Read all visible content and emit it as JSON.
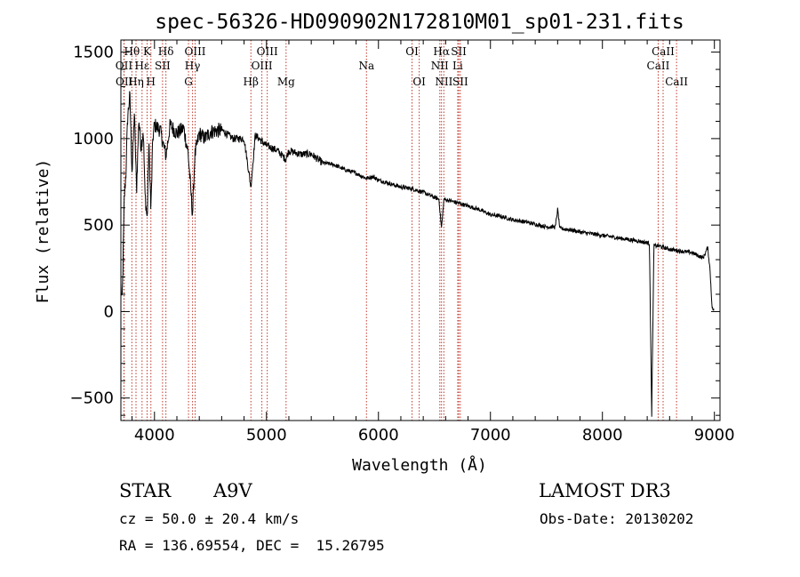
{
  "chart_data": {
    "type": "line",
    "title": "spec-56326-HD090902N172810M01_sp01-231.fits",
    "xlabel": "Wavelength (Å)",
    "ylabel": "Flux (relative)",
    "xlim": [
      3700,
      9050
    ],
    "ylim": [
      -630,
      1570
    ],
    "xticks": [
      4000,
      5000,
      6000,
      7000,
      8000,
      9000
    ],
    "yticks": [
      -500,
      0,
      500,
      1000,
      1500
    ],
    "spectrum_anchors": [
      [
        3700,
        150
      ],
      [
        3710,
        40
      ],
      [
        3720,
        300
      ],
      [
        3730,
        650
      ],
      [
        3745,
        800
      ],
      [
        3760,
        1120
      ],
      [
        3780,
        1250
      ],
      [
        3800,
        800
      ],
      [
        3820,
        1150
      ],
      [
        3840,
        700
      ],
      [
        3860,
        1120
      ],
      [
        3880,
        950
      ],
      [
        3900,
        1050
      ],
      [
        3915,
        680
      ],
      [
        3935,
        530
      ],
      [
        3950,
        980
      ],
      [
        3968,
        580
      ],
      [
        3985,
        1000
      ],
      [
        4000,
        1080
      ],
      [
        4050,
        1050
      ],
      [
        4102,
        900
      ],
      [
        4140,
        1080
      ],
      [
        4200,
        1030
      ],
      [
        4260,
        1060
      ],
      [
        4300,
        920
      ],
      [
        4340,
        560
      ],
      [
        4360,
        900
      ],
      [
        4400,
        1030
      ],
      [
        4450,
        1000
      ],
      [
        4500,
        1040
      ],
      [
        4600,
        1050
      ],
      [
        4700,
        1000
      ],
      [
        4800,
        1000
      ],
      [
        4861,
        720
      ],
      [
        4900,
        1020
      ],
      [
        5000,
        960
      ],
      [
        5100,
        930
      ],
      [
        5172,
        880
      ],
      [
        5200,
        930
      ],
      [
        5300,
        910
      ],
      [
        5400,
        910
      ],
      [
        5500,
        860
      ],
      [
        5600,
        850
      ],
      [
        5700,
        820
      ],
      [
        5800,
        800
      ],
      [
        5890,
        770
      ],
      [
        5950,
        780
      ],
      [
        6000,
        760
      ],
      [
        6100,
        740
      ],
      [
        6200,
        720
      ],
      [
        6300,
        710
      ],
      [
        6400,
        690
      ],
      [
        6500,
        660
      ],
      [
        6540,
        650
      ],
      [
        6563,
        480
      ],
      [
        6585,
        650
      ],
      [
        6700,
        630
      ],
      [
        6800,
        610
      ],
      [
        6900,
        590
      ],
      [
        7000,
        560
      ],
      [
        7100,
        550
      ],
      [
        7200,
        530
      ],
      [
        7300,
        520
      ],
      [
        7400,
        505
      ],
      [
        7500,
        490
      ],
      [
        7580,
        490
      ],
      [
        7600,
        590
      ],
      [
        7620,
        480
      ],
      [
        7700,
        475
      ],
      [
        7800,
        460
      ],
      [
        7900,
        450
      ],
      [
        8000,
        440
      ],
      [
        8100,
        430
      ],
      [
        8200,
        420
      ],
      [
        8300,
        410
      ],
      [
        8420,
        395
      ],
      [
        8440,
        -600
      ],
      [
        8460,
        380
      ],
      [
        8500,
        380
      ],
      [
        8600,
        360
      ],
      [
        8700,
        350
      ],
      [
        8800,
        340
      ],
      [
        8900,
        310
      ],
      [
        8940,
        370
      ],
      [
        8960,
        250
      ],
      [
        8980,
        20
      ],
      [
        9000,
        5
      ]
    ],
    "emission_lines": [
      {
        "label": "Hθ",
        "wavelength": 3798,
        "row": 1
      },
      {
        "label": "OII",
        "wavelength": 3727,
        "row": 2
      },
      {
        "label": "OII",
        "wavelength": 3729,
        "row": 3
      },
      {
        "label": "K",
        "wavelength": 3934,
        "row": 1
      },
      {
        "label": "Hε",
        "wavelength": 3889,
        "row": 2
      },
      {
        "label": "Hη",
        "wavelength": 3835,
        "row": 3
      },
      {
        "label": "SII",
        "wavelength": 4072,
        "row": 2
      },
      {
        "label": "H",
        "wavelength": 3968,
        "row": 3
      },
      {
        "label": "Hδ",
        "wavelength": 4102,
        "row": 1
      },
      {
        "label": "OIII",
        "wavelength": 4363,
        "row": 1
      },
      {
        "label": "Hγ",
        "wavelength": 4340,
        "row": 2
      },
      {
        "label": "G",
        "wavelength": 4304,
        "row": 3
      },
      {
        "label": "OIII",
        "wavelength": 5007,
        "row": 1
      },
      {
        "label": "OIII",
        "wavelength": 4959,
        "row": 2
      },
      {
        "label": "Hβ",
        "wavelength": 4861,
        "row": 3
      },
      {
        "label": "Mg",
        "wavelength": 5175,
        "row": 3
      },
      {
        "label": "Na",
        "wavelength": 5893,
        "row": 2
      },
      {
        "label": "OI",
        "wavelength": 6300,
        "row": 1
      },
      {
        "label": "OI",
        "wavelength": 6364,
        "row": 3
      },
      {
        "label": "Hα",
        "wavelength": 6563,
        "row": 1
      },
      {
        "label": "NII",
        "wavelength": 6548,
        "row": 2
      },
      {
        "label": "NII",
        "wavelength": 6584,
        "row": 3
      },
      {
        "label": "SII",
        "wavelength": 6717,
        "row": 1
      },
      {
        "label": "Li",
        "wavelength": 6708,
        "row": 2
      },
      {
        "label": "SII",
        "wavelength": 6731,
        "row": 3
      },
      {
        "label": "CaII",
        "wavelength": 8542,
        "row": 1
      },
      {
        "label": "CaII",
        "wavelength": 8498,
        "row": 2
      },
      {
        "label": "CaII",
        "wavelength": 8662,
        "row": 3
      }
    ],
    "colors": {
      "spectrum": "#000000",
      "lines": "#c0392b",
      "axes": "#000000"
    }
  },
  "info": {
    "object_class": "STAR",
    "subclass": "A9V",
    "survey": "LAMOST DR3",
    "redshift": "cz = 50.0 ± 20.4 km/s",
    "obs_date": "Obs-Date: 20130202",
    "coords": "RA = 136.69554, DEC =  15.26795"
  }
}
